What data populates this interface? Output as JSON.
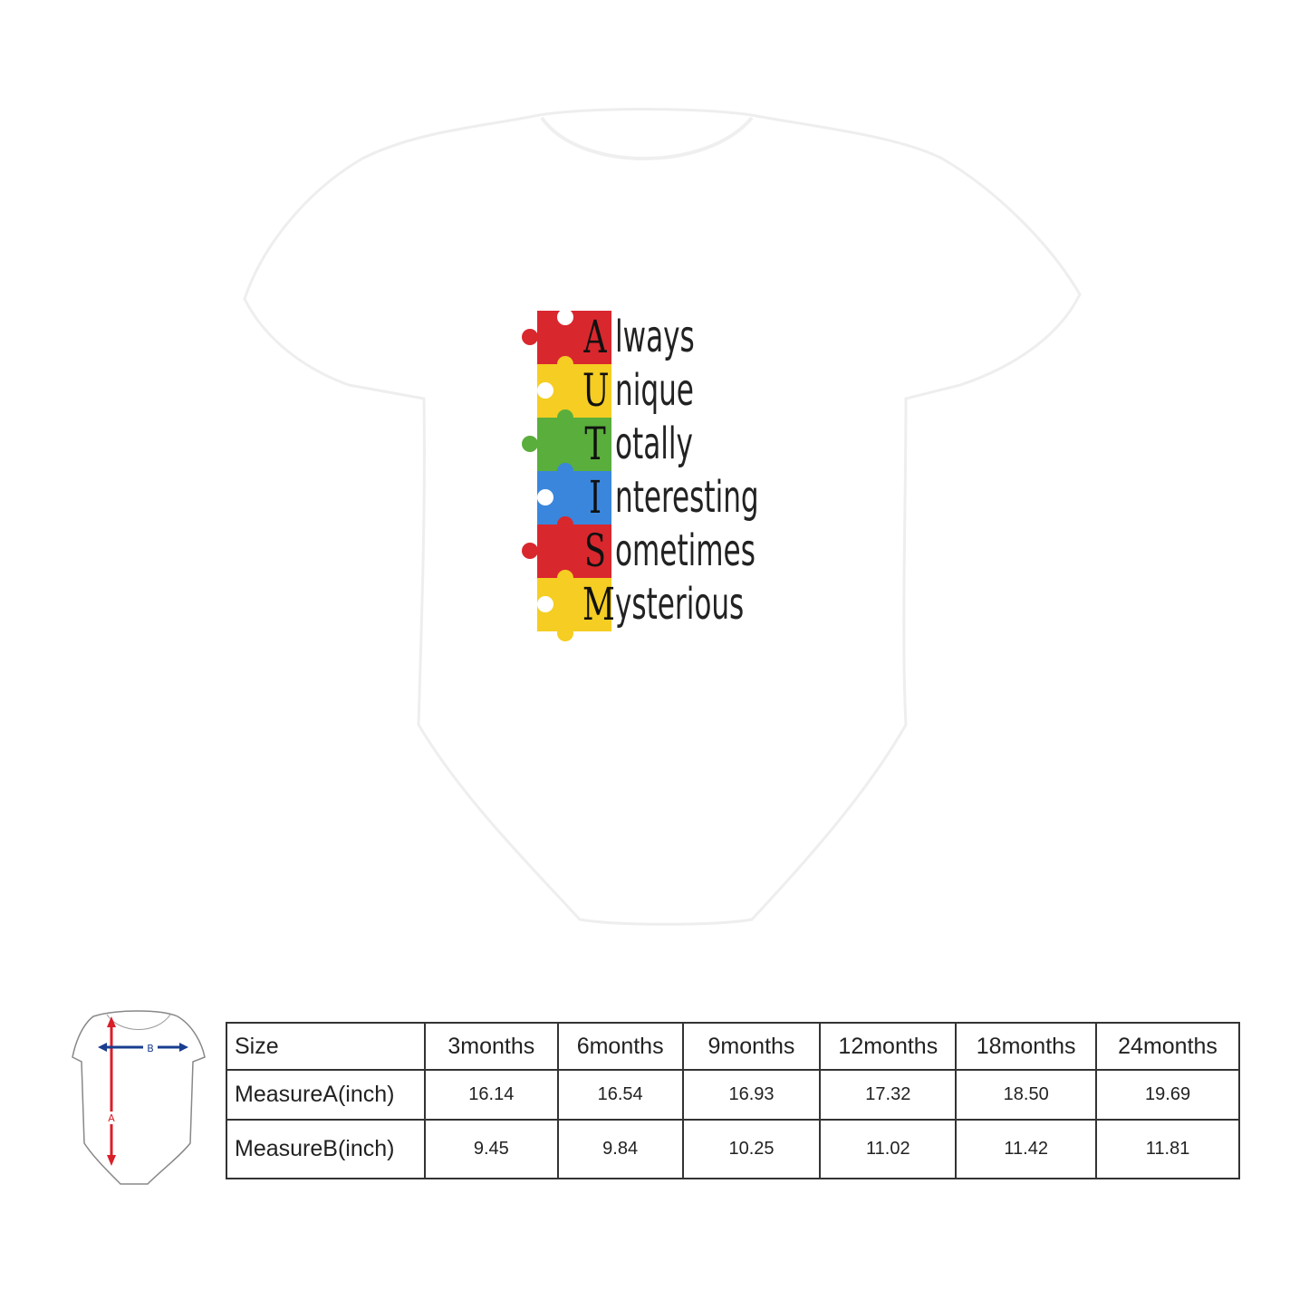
{
  "product": {
    "design": {
      "rows": [
        {
          "letter": "A",
          "word": "lways",
          "color": "#d9272e"
        },
        {
          "letter": "U",
          "word": "nique",
          "color": "#f5cd23"
        },
        {
          "letter": "T",
          "word": "otally",
          "color": "#5aae3c"
        },
        {
          "letter": "I",
          "word": "nteresting",
          "color": "#3a86dc"
        },
        {
          "letter": "S",
          "word": "ometimes",
          "color": "#d9272e"
        },
        {
          "letter": "M",
          "word": "ysterious",
          "color": "#f5cd23"
        }
      ]
    },
    "garment_color": "#ffffff"
  },
  "size_chart": {
    "diagram": {
      "label_a": "A",
      "label_b": "B"
    },
    "header": [
      "Size",
      "3months",
      "6months",
      "9months",
      "12months",
      "18months",
      "24months"
    ],
    "rows": [
      [
        "MeasureA(inch)",
        "16.14",
        "16.54",
        "16.93",
        "17.32",
        "18.50",
        "19.69"
      ],
      [
        "MeasureB(inch)",
        "9.45",
        "9.84",
        "10.25",
        "11.02",
        "11.42",
        "11.81"
      ]
    ]
  }
}
